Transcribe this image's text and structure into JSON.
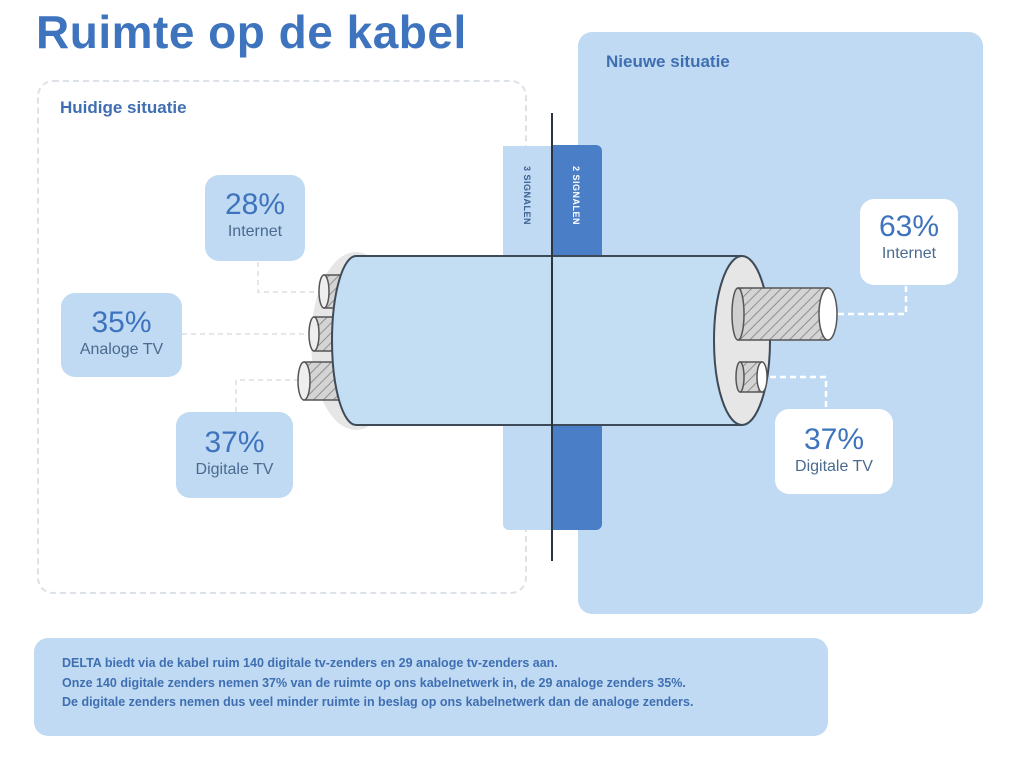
{
  "title": "Ruimte op de kabel",
  "left_panel": {
    "label": "Huidige situatie",
    "items": [
      {
        "percent": "28%",
        "caption": "Internet"
      },
      {
        "percent": "35%",
        "caption": "Analoge TV"
      },
      {
        "percent": "37%",
        "caption": "Digitale TV"
      }
    ]
  },
  "right_panel": {
    "label": "Nieuwe situatie",
    "items": [
      {
        "percent": "63%",
        "caption": "Internet"
      },
      {
        "percent": "37%",
        "caption": "Digitale TV"
      }
    ]
  },
  "signals": {
    "left": "3 SIGNALEN",
    "right": "2 SIGNALEN"
  },
  "note": {
    "lines": [
      "DELTA biedt via de kabel ruim 140 digitale tv-zenders en 29 analoge tv-zenders aan.",
      "Onze 140 digitale zenders nemen 37% van de ruimte op ons kabelnetwerk in, de 29 analoge zenders 35%.",
      "De digitale zenders nemen dus veel minder ruimte in beslag op ons kabelnetwerk dan de analoge zenders."
    ]
  },
  "colors": {
    "title": "#3e73bd",
    "panel": "#bfdaf2",
    "signal_dark": "#4a7ec7",
    "cable": "#c3ddf3"
  }
}
